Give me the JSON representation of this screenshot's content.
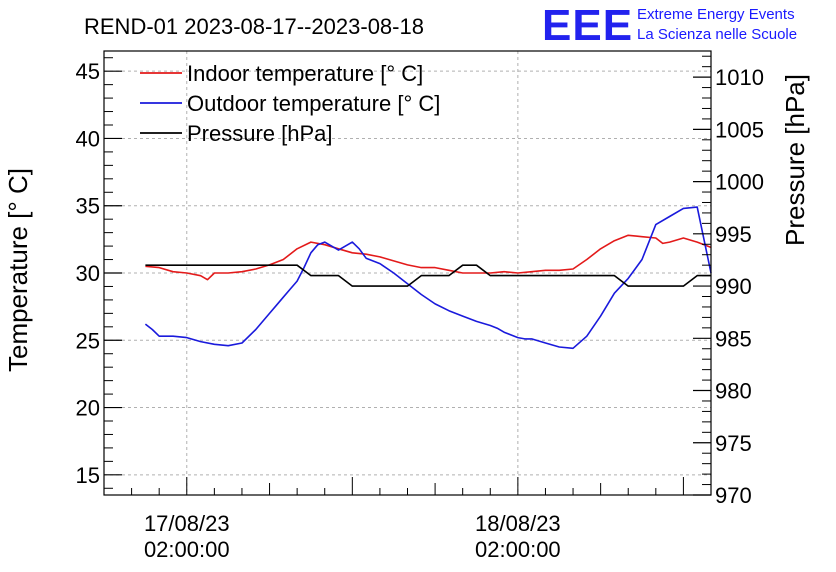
{
  "logo": {
    "text": "EEE",
    "line1": "Extreme Energy Events",
    "line2": "La Scienza nelle Scuole",
    "color": "#1a1aff"
  },
  "chart_data": {
    "type": "line",
    "title": "REND-01 2023-08-17--2023-08-18",
    "ylabel": "Temperature [° C]",
    "y2label": "Pressure [hPa]",
    "ylim": [
      13.5,
      46.5
    ],
    "y2lim": [
      970,
      1012.5
    ],
    "xlim": [
      0,
      44
    ],
    "grid": true,
    "legend_position": "top-left",
    "x_unit": "hours since 2023-08-16 20:00",
    "x_ticks": [
      {
        "x": 6,
        "line1": "17/08/23",
        "line2": "02:00:00"
      },
      {
        "x": 30,
        "line1": "18/08/23",
        "line2": "02:00:00"
      }
    ],
    "y_ticks": [
      15,
      20,
      25,
      30,
      35,
      40,
      45
    ],
    "y2_ticks": [
      970,
      975,
      980,
      985,
      990,
      995,
      1000,
      1005,
      1010
    ],
    "series": [
      {
        "name": "Indoor temperature [° C]",
        "axis": "left",
        "color": "#e31a1a",
        "x": [
          3,
          4,
          5,
          6,
          7,
          7.5,
          8,
          9,
          10,
          11,
          12,
          13,
          14,
          15,
          16,
          17,
          18,
          19,
          20,
          21,
          22,
          23,
          24,
          25,
          26,
          27,
          28,
          29,
          30,
          31,
          32,
          33,
          34,
          35,
          36,
          37,
          38,
          39,
          40,
          40.5,
          41,
          42,
          43,
          44
        ],
        "values": [
          30.5,
          30.4,
          30.1,
          30.0,
          29.8,
          29.5,
          30.0,
          30.0,
          30.1,
          30.3,
          30.6,
          31.0,
          31.8,
          32.3,
          32.1,
          31.8,
          31.5,
          31.4,
          31.2,
          30.9,
          30.6,
          30.4,
          30.4,
          30.2,
          30.0,
          30.0,
          30.0,
          30.1,
          30.0,
          30.1,
          30.2,
          30.2,
          30.3,
          31.0,
          31.8,
          32.4,
          32.8,
          32.7,
          32.6,
          32.2,
          32.3,
          32.6,
          32.3,
          31.9
        ]
      },
      {
        "name": "Outdoor temperature [° C]",
        "axis": "left",
        "color": "#1a1adc",
        "x": [
          3,
          3.5,
          4,
          4.5,
          5,
          6,
          7,
          8,
          9,
          10,
          11,
          12,
          12.5,
          13,
          13.5,
          14,
          14.5,
          15,
          15.5,
          16,
          16.5,
          17,
          18,
          18.5,
          19,
          20,
          21,
          22,
          23,
          24,
          25,
          26,
          27,
          28,
          28.5,
          29,
          30,
          30.5,
          31,
          32,
          33,
          34,
          35,
          36,
          37,
          38,
          38.5,
          39,
          40,
          41,
          42,
          43,
          44
        ],
        "values": [
          26.2,
          25.8,
          25.3,
          25.3,
          25.3,
          25.2,
          24.9,
          24.7,
          24.6,
          24.8,
          25.8,
          27.0,
          27.6,
          28.2,
          28.8,
          29.4,
          30.4,
          31.5,
          32.1,
          32.3,
          32.0,
          31.7,
          32.3,
          31.8,
          31.1,
          30.7,
          30.0,
          29.2,
          28.4,
          27.7,
          27.2,
          26.8,
          26.4,
          26.1,
          25.9,
          25.6,
          25.2,
          25.1,
          25.1,
          24.8,
          24.5,
          24.4,
          25.3,
          26.8,
          28.5,
          29.6,
          30.3,
          31.0,
          33.6,
          34.2,
          34.8,
          34.9,
          30.0
        ]
      },
      {
        "name": "Pressure [hPa]",
        "axis": "right",
        "color": "#000000",
        "x": [
          3,
          7,
          11,
          14,
          15,
          17,
          18,
          22,
          23,
          25,
          26,
          27,
          28,
          32,
          33,
          37,
          38,
          42,
          43,
          44
        ],
        "values": [
          992,
          992,
          992,
          992,
          991,
          991,
          990,
          990,
          991,
          991,
          992,
          992,
          991,
          991,
          991,
          991,
          990,
          990,
          991,
          991
        ]
      }
    ]
  }
}
